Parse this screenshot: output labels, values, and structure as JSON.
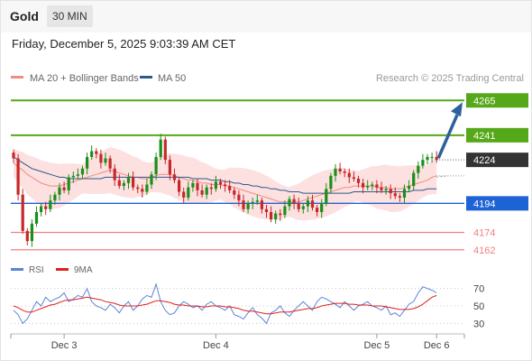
{
  "header": {
    "instrument": "Gold",
    "timeframe": "30 MIN",
    "datetime": "Friday, December 5, 2025 9:03:39 AM CET"
  },
  "legend": {
    "ma20": {
      "label": "MA 20 + Bollinger Bands",
      "color": "#f28b82"
    },
    "ma50": {
      "label": "MA 50",
      "color": "#2c5a8f"
    }
  },
  "research_credit": "Research © 2025 Trading Central",
  "colors": {
    "up_candle": "#1a8f1a",
    "down_candle": "#c62828",
    "resistance": "#55a818",
    "pivot": "#1e63d6",
    "support": "#f08080",
    "last_price_box": "#333333",
    "bollinger_fill": "#fde0e0",
    "arrow": "#2e5f9e",
    "rsi": "#5b84d6",
    "rsi_ma": "#e02020"
  },
  "chart_data": {
    "type": "candlestick",
    "ylim": [
      4160,
      4272
    ],
    "levels": [
      {
        "value": 4265,
        "label": "4265",
        "kind": "resistance"
      },
      {
        "value": 4241,
        "label": "4241",
        "kind": "resistance"
      },
      {
        "value": 4224,
        "label": "4224",
        "kind": "last"
      },
      {
        "value": 4194,
        "label": "4194",
        "kind": "pivot"
      },
      {
        "value": 4174,
        "label": "4174",
        "kind": "support"
      },
      {
        "value": 4162,
        "label": "4162",
        "kind": "support"
      }
    ],
    "x_ticks": [
      "Dec 3",
      "Dec 4",
      "Dec 5",
      "Dec 6"
    ],
    "closes": [
      4225,
      4200,
      4175,
      4168,
      4180,
      4188,
      4192,
      4190,
      4196,
      4200,
      4205,
      4203,
      4212,
      4213,
      4214,
      4218,
      4226,
      4230,
      4228,
      4222,
      4225,
      4218,
      4210,
      4206,
      4208,
      4212,
      4205,
      4204,
      4202,
      4207,
      4214,
      4226,
      4238,
      4224,
      4214,
      4210,
      4202,
      4198,
      4205,
      4208,
      4203,
      4200,
      4205,
      4204,
      4209,
      4207,
      4206,
      4203,
      4200,
      4196,
      4190,
      4194,
      4195,
      4196,
      4190,
      4188,
      4183,
      4187,
      4186,
      4192,
      4197,
      4194,
      4190,
      4192,
      4196,
      4191,
      4188,
      4194,
      4204,
      4213,
      4218,
      4216,
      4215,
      4212,
      4211,
      4208,
      4205,
      4206,
      4207,
      4205,
      4203,
      4204,
      4201,
      4199,
      4198,
      4204,
      4206,
      4215,
      4220,
      4224,
      4226,
      4226,
      4224
    ],
    "ma20": [
      4222,
      4219,
      4217,
      4214,
      4212,
      4210,
      4208,
      4207,
      4206,
      4206,
      4206,
      4207,
      4208,
      4209,
      4210,
      4211,
      4212,
      4213,
      4214,
      4215,
      4216,
      4217,
      4216,
      4215,
      4214,
      4213,
      4212,
      4212,
      4211,
      4211,
      4212,
      4213,
      4214,
      4214,
      4214,
      4213,
      4212,
      4211,
      4210,
      4210,
      4209,
      4208,
      4208,
      4207,
      4207,
      4207,
      4206,
      4206,
      4205,
      4204,
      4203,
      4202,
      4201,
      4200,
      4199,
      4198,
      4197,
      4196,
      4195,
      4195,
      4195,
      4195,
      4195,
      4196,
      4197,
      4198,
      4199,
      4200,
      4201,
      4202,
      4203,
      4204,
      4205,
      4205,
      4206,
      4206,
      4206,
      4206,
      4206,
      4205,
      4205,
      4205,
      4204,
      4204,
      4204,
      4205,
      4206,
      4207,
      4208,
      4209,
      4210,
      4212,
      4213
    ],
    "ma50": [
      4226,
      4224,
      4222,
      4220,
      4218,
      4217,
      4216,
      4215,
      4214,
      4213,
      4212,
      4212,
      4211,
      4211,
      4211,
      4211,
      4211,
      4211,
      4211,
      4211,
      4212,
      4212,
      4212,
      4212,
      4212,
      4212,
      4212,
      4212,
      4212,
      4212,
      4212,
      4212,
      4212,
      4212,
      4212,
      4212,
      4212,
      4212,
      4212,
      4211,
      4211,
      4211,
      4211,
      4210,
      4210,
      4210,
      4209,
      4209,
      4208,
      4208,
      4207,
      4207,
      4206,
      4206,
      4205,
      4205,
      4204,
      4204,
      4203,
      4203,
      4202,
      4202,
      4202,
      4201,
      4201,
      4201,
      4201,
      4201,
      4201,
      4201,
      4201,
      4201,
      4201,
      4201,
      4202,
      4202,
      4202,
      4202,
      4202,
      4202,
      4202,
      4202,
      4202,
      4202,
      4202,
      4202,
      4202,
      4203,
      4203,
      4203,
      4204,
      4204,
      4204
    ],
    "arrow": {
      "from": 4224,
      "to": 4265
    },
    "rsi": {
      "ticks": [
        70,
        50,
        30
      ],
      "ylim": [
        20,
        80
      ],
      "legend": {
        "rsi": "RSI",
        "ma": "9MA"
      },
      "values": [
        45,
        40,
        30,
        35,
        45,
        55,
        50,
        60,
        55,
        58,
        60,
        65,
        55,
        58,
        62,
        60,
        70,
        55,
        50,
        48,
        45,
        52,
        48,
        42,
        50,
        55,
        45,
        50,
        58,
        62,
        60,
        75,
        55,
        45,
        40,
        42,
        50,
        55,
        52,
        48,
        50,
        45,
        52,
        55,
        50,
        48,
        45,
        50,
        40,
        38,
        35,
        42,
        48,
        40,
        36,
        30,
        42,
        45,
        50,
        42,
        38,
        45,
        50,
        55,
        50,
        45,
        55,
        60,
        58,
        55,
        52,
        48,
        55,
        50,
        45,
        50,
        52,
        55,
        50,
        48,
        45,
        50,
        40,
        42,
        38,
        45,
        52,
        55,
        65,
        72,
        70,
        68,
        65
      ],
      "ma": [
        50,
        48,
        45,
        43,
        43,
        45,
        47,
        49,
        51,
        52,
        54,
        56,
        57,
        57,
        58,
        59,
        60,
        59,
        58,
        57,
        55,
        54,
        53,
        51,
        50,
        50,
        50,
        50,
        51,
        52,
        54,
        56,
        56,
        55,
        54,
        52,
        51,
        51,
        50,
        50,
        50,
        49,
        49,
        50,
        50,
        50,
        49,
        49,
        48,
        47,
        45,
        44,
        44,
        43,
        42,
        41,
        41,
        42,
        43,
        43,
        43,
        44,
        45,
        46,
        47,
        47,
        48,
        50,
        51,
        52,
        53,
        53,
        53,
        52,
        52,
        51,
        51,
        51,
        50,
        50,
        50,
        49,
        48,
        47,
        46,
        46,
        46,
        47,
        49,
        52,
        56,
        60,
        62
      ]
    }
  }
}
